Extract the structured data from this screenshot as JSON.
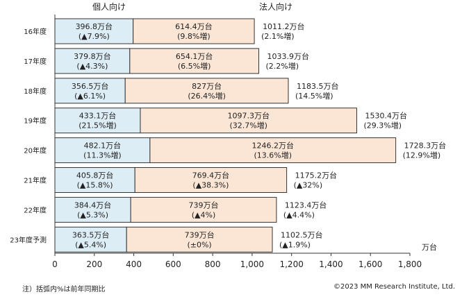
{
  "chart_data": {
    "type": "bar",
    "orientation": "horizontal",
    "stacked": true,
    "categories": [
      "16年度",
      "17年度",
      "18年度",
      "19年度",
      "20年度",
      "21年度",
      "22年度",
      "23年度予測"
    ],
    "series": [
      {
        "name": "個人向け",
        "color": "#dcedf5",
        "values": [
          396.8,
          379.8,
          356.5,
          433.1,
          482.1,
          405.8,
          384.4,
          363.5
        ],
        "labels": [
          "396.8万台",
          "379.8万台",
          "356.5万台",
          "433.1万台",
          "482.1万台",
          "405.8万台",
          "384.4万台",
          "363.5万台"
        ],
        "changes": [
          "(▲7.9%)",
          "(▲4.3%)",
          "(▲6.1%)",
          "(21.5%増)",
          "(11.3%増)",
          "(▲15.8%)",
          "(▲5.3%)",
          "(▲5.4%)"
        ]
      },
      {
        "name": "法人向け",
        "color": "#fbe6d6",
        "values": [
          614.4,
          654.1,
          827,
          1097.3,
          1246.2,
          769.4,
          739,
          739
        ],
        "labels": [
          "614.4万台",
          "654.1万台",
          "827万台",
          "1097.3万台",
          "1246.2万台",
          "769.4万台",
          "739万台",
          "739万台"
        ],
        "changes": [
          "(9.8%増)",
          "(6.5%増)",
          "(26.4%増)",
          "(32.7%増)",
          "(13.6%増)",
          "(▲38.3%)",
          "(▲4%)",
          "(±0%)"
        ]
      }
    ],
    "totals": {
      "values": [
        1011.2,
        1033.9,
        1183.5,
        1530.4,
        1728.3,
        1175.2,
        1123.4,
        1102.5
      ],
      "labels": [
        "1011.2万台",
        "1033.9万台",
        "1183.5万台",
        "1530.4万台",
        "1728.3万台",
        "1175.2万台",
        "1123.4万台",
        "1102.5万台"
      ],
      "changes": [
        "(2.1%増)",
        "(2.2%増)",
        "(14.5%増)",
        "(29.3%増)",
        "(12.9%増)",
        "(▲32%)",
        "(▲4.4%)",
        "(▲1.9%)"
      ]
    },
    "x_ticks": [
      0,
      200,
      400,
      600,
      800,
      1000,
      1200,
      1400,
      1600,
      1800
    ],
    "x_tick_labels": [
      "0",
      "200",
      "400",
      "600",
      "800",
      "1,000",
      "1,200",
      "1,400",
      "1,600",
      "1,800"
    ],
    "xlim": [
      0,
      1800
    ],
    "unit": "万台",
    "grid": false,
    "edge_color": "#333333"
  },
  "note": "注）括弧内%は前年同期比",
  "copyright": "©2023 MM Research Institute, Ltd."
}
